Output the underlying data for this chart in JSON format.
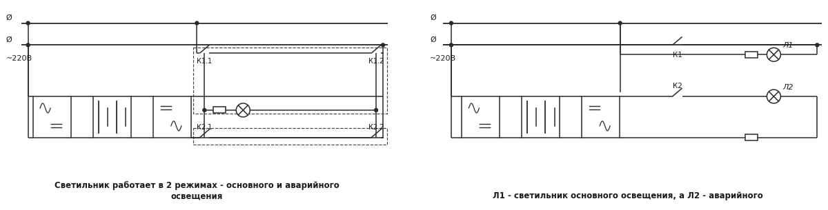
{
  "bg_color": "#ffffff",
  "line_color": "#2a2a2a",
  "dashed_color": "#444444",
  "text_color": "#1a1a1a",
  "fig_width": 12.0,
  "fig_height": 3.05,
  "caption_left": "Светильник работает в 2 режимах - основного и аварийного\nосвещения",
  "caption_right": "Л1 - светильник основного освещения, а Л2 - аварийного",
  "label_phi": "Ø",
  "label_220": "~220В",
  "label_K11": "К1.1",
  "label_K12": "К1.2",
  "label_K21": "К2.1",
  "label_K22": "К2.2",
  "label_K1": "К1",
  "label_K2": "К2",
  "label_L1": "Л1",
  "label_L2": "Л2"
}
